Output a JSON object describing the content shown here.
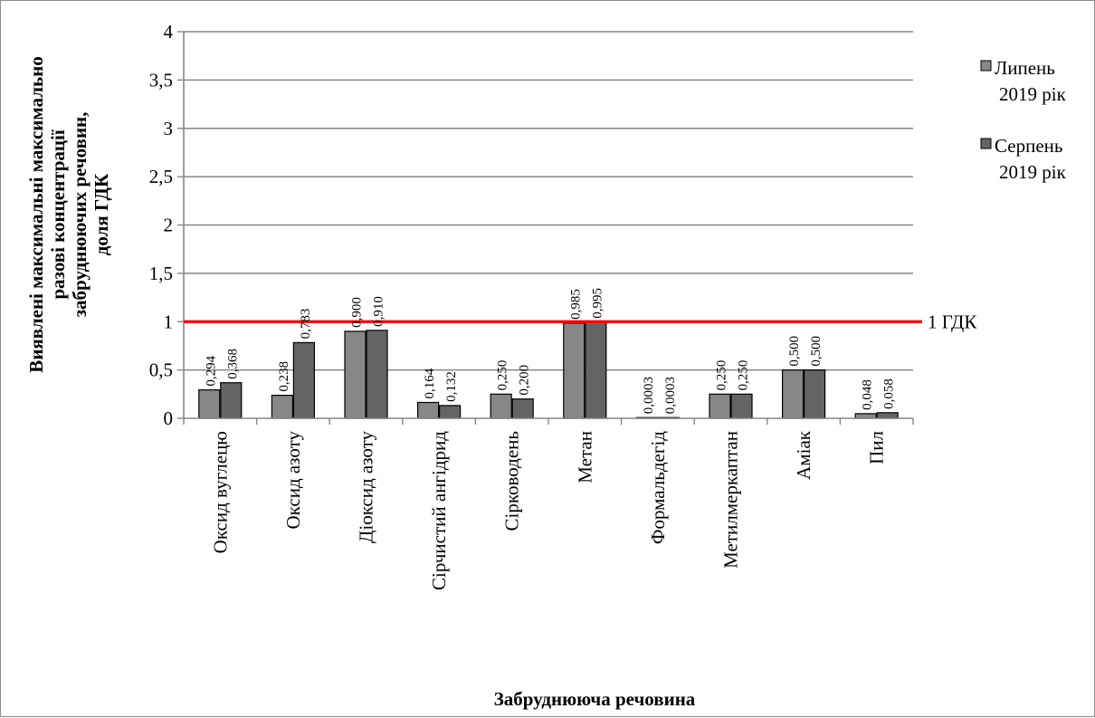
{
  "chart_data": {
    "type": "bar",
    "title": "",
    "ylabel_lines": [
      "Виявлені максимальні  максимально",
      "разові  концентрації",
      "забруднюючих речовин,",
      "доля  ГДК"
    ],
    "xlabel": "Забруднююча речовина",
    "ylim": [
      0,
      4
    ],
    "y_ticks": [
      0,
      0.5,
      1,
      1.5,
      2,
      2.5,
      3,
      3.5,
      4
    ],
    "y_tick_labels": [
      "0",
      "0,5",
      "1",
      "1,5",
      "2",
      "2,5",
      "3",
      "3,5",
      "4"
    ],
    "grid": true,
    "legend_position": "right",
    "categories": [
      "Оксид вуглецю",
      "Оксид азоту",
      "Діоксид азоту",
      "Сірчистий ангідрид",
      "Сірководень",
      "Метан",
      "Формальдегід",
      "Метилмеркаптан",
      "Аміак",
      "Пил"
    ],
    "series": [
      {
        "name_lines": [
          "Липень",
          "2019 рік"
        ],
        "color": "#878787",
        "values": [
          0.294,
          0.238,
          0.9,
          0.164,
          0.25,
          0.985,
          0.0003,
          0.25,
          0.5,
          0.048
        ],
        "labels": [
          "0,294",
          "0,238",
          "0,900",
          "0,164",
          "0,250",
          "0,985",
          "0,0003",
          "0,250",
          "0,500",
          "0,048"
        ]
      },
      {
        "name_lines": [
          "Серпень",
          "2019 рік"
        ],
        "color": "#646464",
        "values": [
          0.368,
          0.783,
          0.91,
          0.132,
          0.2,
          0.995,
          0.0003,
          0.25,
          0.5,
          0.058
        ],
        "labels": [
          "0,368",
          "0,783",
          "0,910",
          "0,132",
          "0,200",
          "0,995",
          "0,0003",
          "0,250",
          "0,500",
          "0,058"
        ]
      }
    ],
    "reference_line": {
      "value": 1,
      "label": "1 ГДК",
      "color": "#ff0000"
    }
  }
}
